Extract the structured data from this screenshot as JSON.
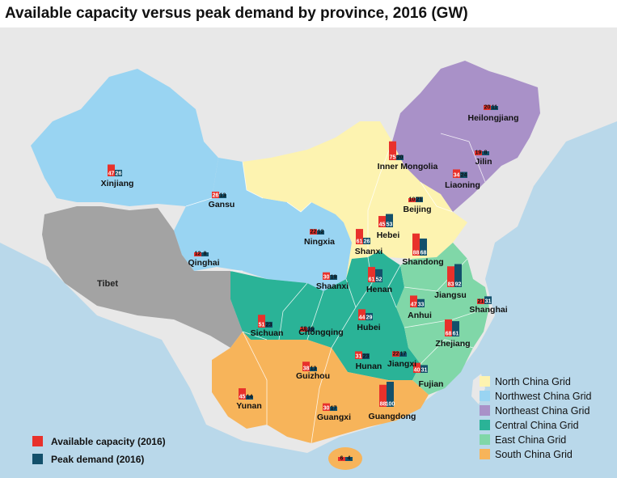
{
  "title": "Available capacity versus peak demand by province, 2016 (GW)",
  "colors": {
    "available": "#e8312b",
    "peak": "#13506b",
    "north_china": "#fdf3b0",
    "northwest_china": "#99d4f2",
    "northeast_china": "#a991c8",
    "central_china": "#2ab397",
    "east_china": "#80d7a8",
    "south_china": "#f7b45a",
    "tibet": "#a3a3a3",
    "sea": "#b9d8ea",
    "neighbor": "#e8e8e8"
  },
  "series_legend": [
    {
      "label": "Available capacity (2016)",
      "color": "#e8312b"
    },
    {
      "label": "Peak demand (2016)",
      "color": "#13506b"
    }
  ],
  "grid_legend": [
    {
      "label": "North China Grid",
      "color": "#fdf3b0"
    },
    {
      "label": "Northwest China Grid",
      "color": "#99d4f2"
    },
    {
      "label": "Northeast China Grid",
      "color": "#a991c8"
    },
    {
      "label": "Central China Grid",
      "color": "#2ab397"
    },
    {
      "label": "East China Grid",
      "color": "#80d7a8"
    },
    {
      "label": "South China Grid",
      "color": "#f7b45a"
    }
  ],
  "tibet_label": "Tibet",
  "chart_data": {
    "type": "bar",
    "series": [
      {
        "name": "Available capacity (2016)"
      },
      {
        "name": "Peak demand (2016)"
      }
    ],
    "provinces": [
      {
        "name": "Xinjiang",
        "grid": "Northwest China Grid",
        "available": 47,
        "peak": 26
      },
      {
        "name": "Gansu",
        "grid": "Northwest China Grid",
        "available": 26,
        "peak": 13
      },
      {
        "name": "Qinghai",
        "grid": "Northwest China Grid",
        "available": 12,
        "peak": 8
      },
      {
        "name": "Ningxia",
        "grid": "Northwest China Grid",
        "available": 22,
        "peak": 12
      },
      {
        "name": "Shaanxi",
        "grid": "Northwest China Grid",
        "available": 30,
        "peak": 19
      },
      {
        "name": "Inner Mongolia",
        "grid": "North China Grid",
        "available": 75,
        "peak": 20
      },
      {
        "name": "Beijing",
        "grid": "North China Grid",
        "available": 10,
        "peak": 21
      },
      {
        "name": "Hebei",
        "grid": "North China Grid",
        "available": 45,
        "peak": 53
      },
      {
        "name": "Shanxi",
        "grid": "North China Grid",
        "available": 61,
        "peak": 26
      },
      {
        "name": "Shandong",
        "grid": "North China Grid",
        "available": 88,
        "peak": 68
      },
      {
        "name": "Heilongjiang",
        "grid": "Northeast China Grid",
        "available": 20,
        "peak": 11
      },
      {
        "name": "Jilin",
        "grid": "Northeast China Grid",
        "available": 19,
        "peak": 8
      },
      {
        "name": "Liaoning",
        "grid": "Northeast China Grid",
        "available": 34,
        "peak": 24
      },
      {
        "name": "Henan",
        "grid": "Central China Grid",
        "available": 61,
        "peak": 52
      },
      {
        "name": "Sichuan",
        "grid": "Central China Grid",
        "available": 51,
        "peak": 23
      },
      {
        "name": "Chongqing",
        "grid": "Central China Grid",
        "available": 18,
        "peak": 16
      },
      {
        "name": "Hubei",
        "grid": "Central China Grid",
        "available": 44,
        "peak": 29
      },
      {
        "name": "Hunan",
        "grid": "Central China Grid",
        "available": 31,
        "peak": 23
      },
      {
        "name": "Jiangxi",
        "grid": "Central China Grid",
        "available": 22,
        "peak": 17
      },
      {
        "name": "Jiangsu",
        "grid": "East China Grid",
        "available": 83,
        "peak": 92
      },
      {
        "name": "Anhui",
        "grid": "East China Grid",
        "available": 47,
        "peak": 33
      },
      {
        "name": "Shanghai",
        "grid": "East China Grid",
        "available": 21,
        "peak": 31
      },
      {
        "name": "Zhejiang",
        "grid": "East China Grid",
        "available": 68,
        "peak": 61
      },
      {
        "name": "Fujian",
        "grid": "East China Grid",
        "available": 40,
        "peak": 31
      },
      {
        "name": "Guizhou",
        "grid": "South China Grid",
        "available": 38,
        "peak": 13
      },
      {
        "name": "Yunan",
        "grid": "South China Grid",
        "available": 45,
        "peak": 14
      },
      {
        "name": "Guangxi",
        "grid": "South China Grid",
        "available": 30,
        "peak": 17
      },
      {
        "name": "Guangdong",
        "grid": "South China Grid",
        "available": 88,
        "peak": 100
      },
      {
        "name": "",
        "grid": "South China Grid",
        "available": 6,
        "peak": 4
      }
    ]
  }
}
